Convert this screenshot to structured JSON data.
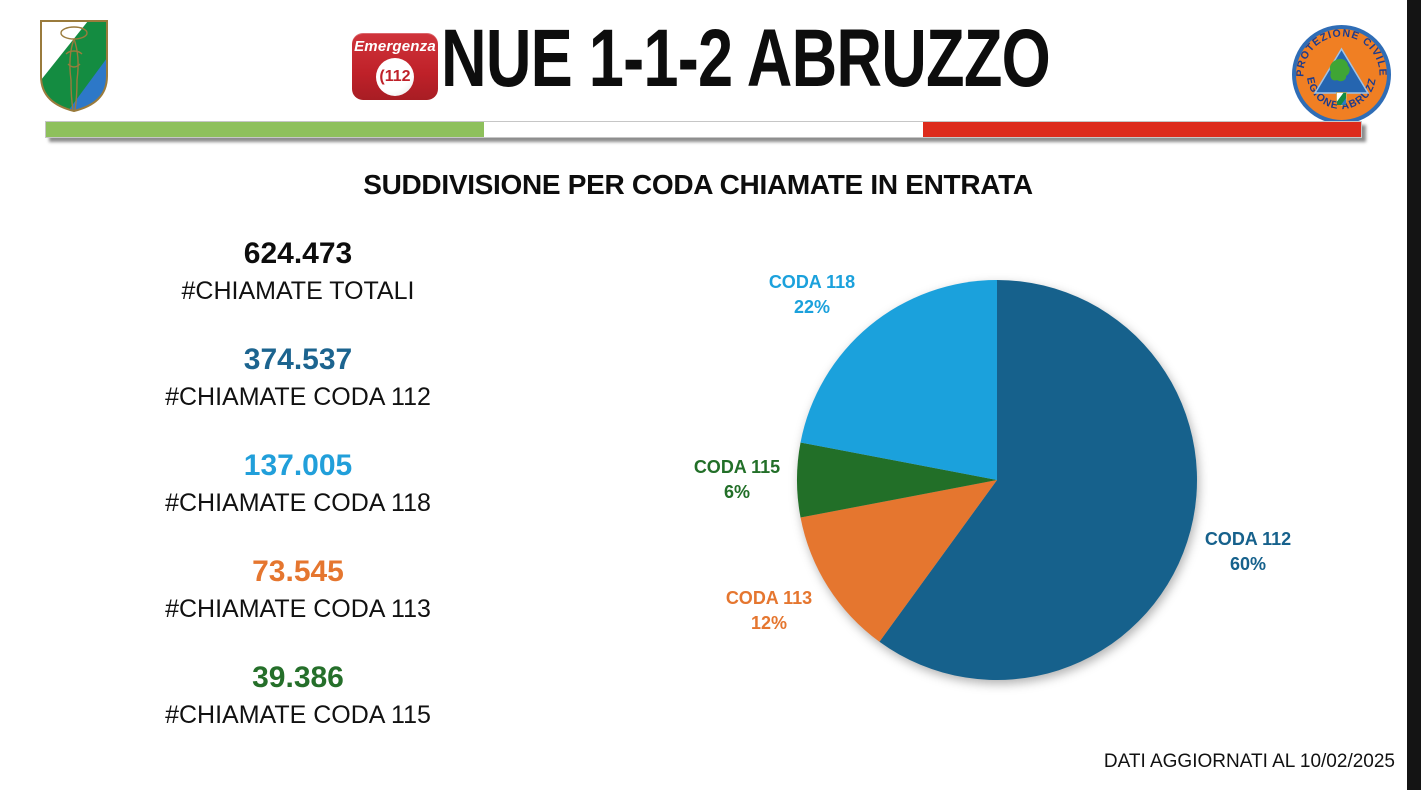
{
  "header": {
    "title": "NUE 1-1-2 ABRUZZO",
    "badge": {
      "line1": "Emergenza",
      "number": "(112"
    },
    "coat_of_arms_name": "stemma-regione-abruzzo",
    "pc_logo": {
      "arc_top": "PROTEZIONE CIVILE",
      "arc_bottom": "REGIONE ABRUZZO"
    }
  },
  "tricolor_bar": {
    "green": "#8ec05c",
    "white": "#ffffff",
    "red": "#dd2b1c"
  },
  "section_title": "SUDDIVISIONE PER CODA CHIAMATE IN ENTRATA",
  "stats": [
    {
      "value": "624.473",
      "label": "#CHIAMATE TOTALI",
      "color": "#0d0d0d"
    },
    {
      "value": "374.537",
      "label": "#CHIAMATE CODA 112",
      "color": "#1c648f"
    },
    {
      "value": "137.005",
      "label": "#CHIAMATE CODA 118",
      "color": "#219fda"
    },
    {
      "value": "73.545",
      "label": "#CHIAMATE CODA 113",
      "color": "#e5762f"
    },
    {
      "value": "39.386",
      "label": "#CHIAMATE CODA 115",
      "color": "#256f2a"
    }
  ],
  "chart_data": {
    "type": "pie",
    "title": "SUDDIVISIONE PER CODA CHIAMATE IN ENTRATA",
    "start_angle_deg": 0,
    "direction": "clockwise",
    "legend_position": "outside-labels",
    "slices": [
      {
        "label": "CODA 112",
        "pct": 60,
        "pct_label": "60%",
        "value": 374537,
        "color": "#16618c"
      },
      {
        "label": "CODA 113",
        "pct": 12,
        "pct_label": "12%",
        "value": 73545,
        "color": "#e5762f"
      },
      {
        "label": "CODA 115",
        "pct": 6,
        "pct_label": "6%",
        "value": 39386,
        "color": "#226f28"
      },
      {
        "label": "CODA 118",
        "pct": 22,
        "pct_label": "22%",
        "value": 137005,
        "color": "#1ba1dc"
      }
    ],
    "total": 624473
  },
  "footer": {
    "updated": "DATI AGGIORNATI AL 10/02/2025"
  }
}
